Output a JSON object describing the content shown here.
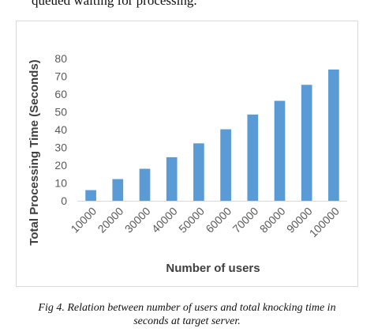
{
  "page": {
    "top_text": "queued waiting for processing.",
    "caption_line1": "Fig 4. Relation between number of users and total knocking time in",
    "caption_line2": "seconds at target server."
  },
  "chart_data": {
    "type": "bar",
    "categories": [
      "10000",
      "20000",
      "30000",
      "40000",
      "50000",
      "60000",
      "70000",
      "80000",
      "90000",
      "100000"
    ],
    "values": [
      6,
      12.2,
      18,
      24.5,
      32.3,
      40.2,
      48.5,
      56.2,
      65.2,
      73.8
    ],
    "title": "",
    "xlabel": "Number of users",
    "ylabel": "Total Processing Time (Seconds)",
    "ylim": [
      0,
      80
    ],
    "yticks": [
      0,
      10,
      20,
      30,
      40,
      50,
      60,
      70,
      80
    ],
    "grid": false,
    "legend": "none",
    "colors": {
      "bar": "#5b9bd5",
      "axis": "#d9d9d9",
      "text": "#595959",
      "label": "#404040"
    }
  }
}
